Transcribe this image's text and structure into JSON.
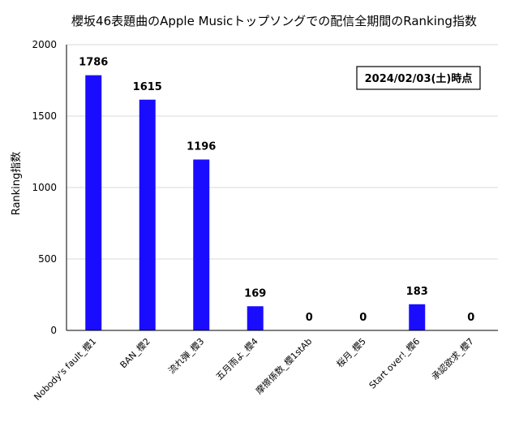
{
  "chart_data": {
    "type": "bar",
    "title": "櫻坂46表題曲のApple Musicトップソングでの配信全期間のRanking指数",
    "xlabel": "",
    "ylabel": "Ranking指数",
    "ylim": [
      0,
      2000
    ],
    "yticks": [
      "0",
      "500",
      "1000",
      "1500",
      "2000"
    ],
    "grid": true,
    "categories": [
      "Nobody's fault_櫻1",
      "BAN_櫻2",
      "流れ弾_櫻3",
      "五月雨よ_櫻4",
      "摩擦係数_櫻1stAb",
      "桜月_櫻5",
      "Start over!_櫻6",
      "承認欲求_櫻7"
    ],
    "values": [
      1786,
      1615,
      1196,
      169,
      0,
      0,
      183,
      0
    ],
    "annotation": "2024/02/03(土)時点",
    "bar_color": "#1a0dff"
  }
}
